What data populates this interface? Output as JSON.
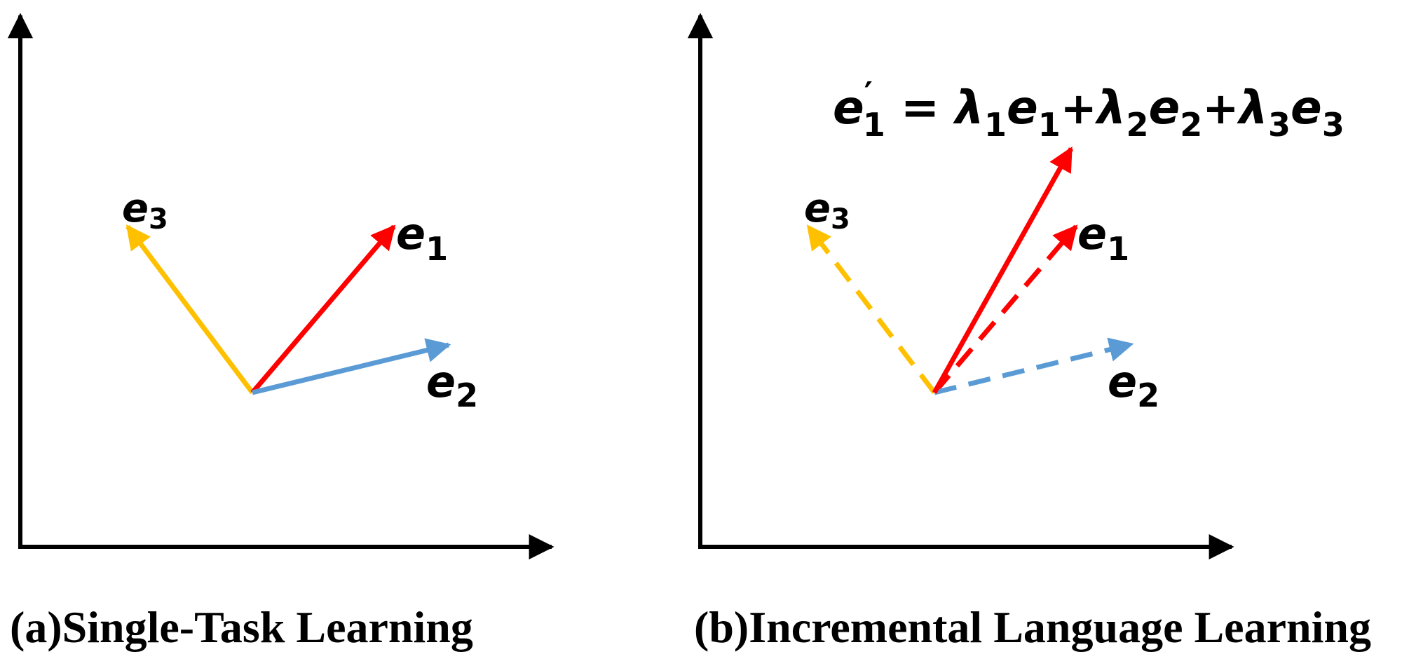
{
  "panels": {
    "a": {
      "caption": "(a)Single-Task Learning",
      "labels": {
        "e1": "e",
        "e1_sub": "1",
        "e2": "e",
        "e2_sub": "2",
        "e3": "e",
        "e3_sub": "3"
      }
    },
    "b": {
      "caption": "(b)Incremental Language Learning",
      "labels": {
        "e1": "e",
        "e1_sub": "1",
        "e2": "e",
        "e2_sub": "2",
        "e3": "e",
        "e3_sub": "3"
      },
      "equation": {
        "lhs": "e",
        "lhs_prime": "′",
        "lhs_sub": "1",
        "eq": "=",
        "t1_coef": "λ",
        "t1_coef_sub": "1",
        "t1_var": "e",
        "t1_var_sub": "1",
        "plus1": "+",
        "t2_coef": "λ",
        "t2_coef_sub": "2",
        "t2_var": "e",
        "t2_var_sub": "2",
        "plus2": "+",
        "t3_coef": "λ",
        "t3_coef_sub": "3",
        "t3_var": "e",
        "t3_var_sub": "3"
      }
    }
  },
  "colors": {
    "e1": "#ff0000",
    "e2": "#5b9bd5",
    "e3": "#ffc000",
    "axis": "#000000"
  }
}
